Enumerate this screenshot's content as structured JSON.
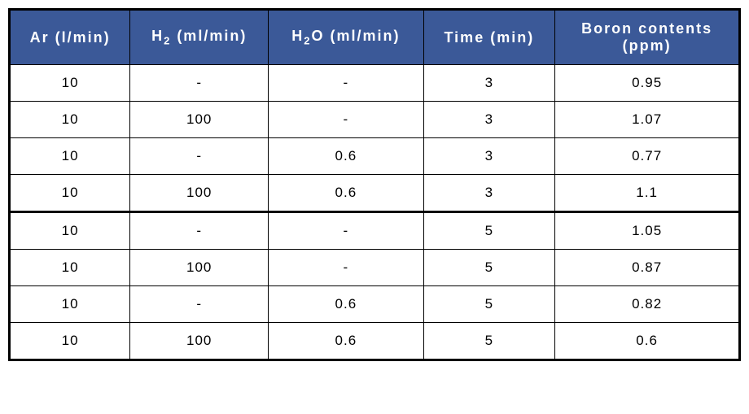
{
  "table": {
    "header_bg": "#3b5998",
    "header_fg": "#ffffff",
    "cell_bg": "#ffffff",
    "cell_fg": "#000000",
    "border_color": "#000000",
    "columns": [
      {
        "label": "Ar (l/min)"
      },
      {
        "label_pre": "H",
        "label_sub": "2",
        "label_post": " (ml/min)"
      },
      {
        "label_pre": "H",
        "label_sub": "2",
        "label_post": "O (ml/min)"
      },
      {
        "label": "Time (min)"
      },
      {
        "label_line1": "Boron contents",
        "label_line2": "(ppm)"
      }
    ],
    "rows": [
      {
        "ar": "10",
        "h2": "-",
        "h2o": "-",
        "time": "3",
        "boron": "0.95"
      },
      {
        "ar": "10",
        "h2": "100",
        "h2o": "-",
        "time": "3",
        "boron": "1.07"
      },
      {
        "ar": "10",
        "h2": "-",
        "h2o": "0.6",
        "time": "3",
        "boron": "0.77"
      },
      {
        "ar": "10",
        "h2": "100",
        "h2o": "0.6",
        "time": "3",
        "boron": "1.1"
      },
      {
        "ar": "10",
        "h2": "-",
        "h2o": "-",
        "time": "5",
        "boron": "1.05"
      },
      {
        "ar": "10",
        "h2": "100",
        "h2o": "-",
        "time": "5",
        "boron": "0.87"
      },
      {
        "ar": "10",
        "h2": "-",
        "h2o": "0.6",
        "time": "5",
        "boron": "0.82"
      },
      {
        "ar": "10",
        "h2": "100",
        "h2o": "0.6",
        "time": "5",
        "boron": "0.6"
      }
    ],
    "section_break_after_row": 4
  }
}
